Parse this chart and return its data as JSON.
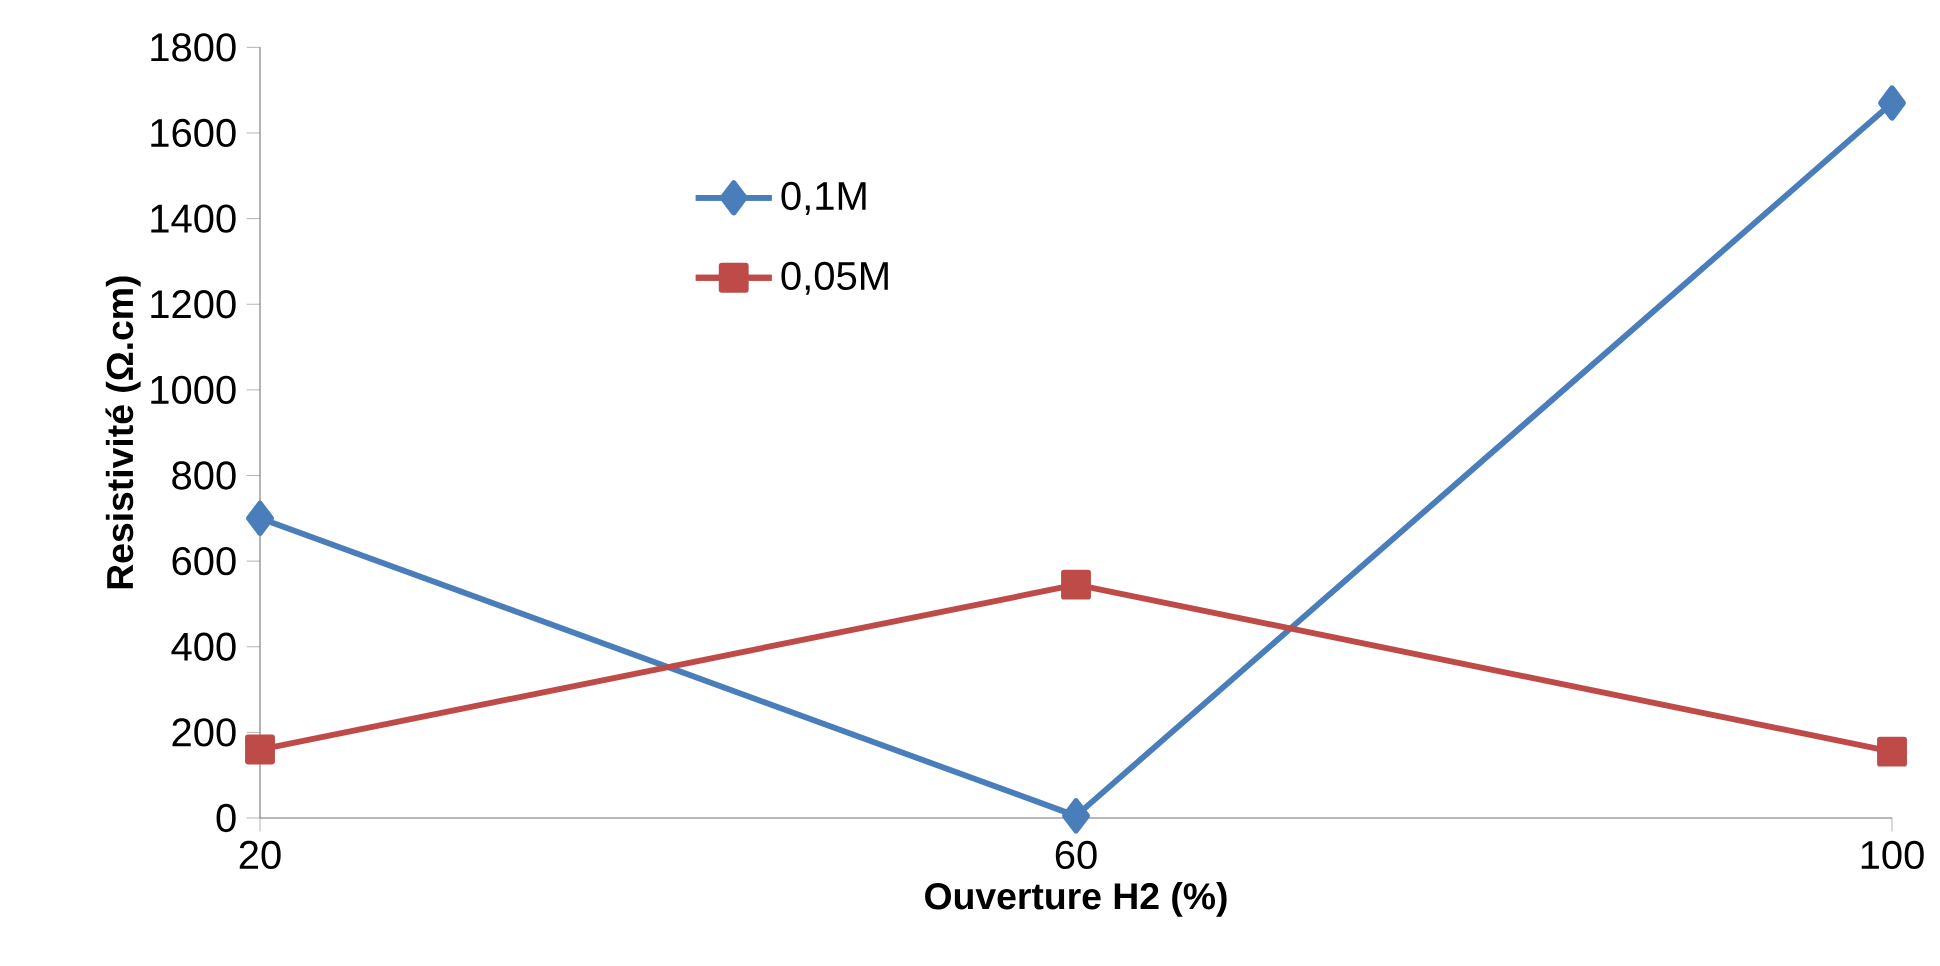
{
  "chart_data": {
    "type": "line",
    "xlabel": "Ouverture H2 (%)",
    "ylabel": "Resistivité (Ω.cm)",
    "x": [
      20,
      60,
      100
    ],
    "series": [
      {
        "name": "0,1M",
        "color": "#4a7ebb",
        "marker": "diamond",
        "values": [
          700,
          5,
          1670
        ]
      },
      {
        "name": "0,05M",
        "color": "#be4b48",
        "marker": "square",
        "values": [
          160,
          545,
          155
        ]
      }
    ],
    "xlim": [
      20,
      100
    ],
    "xticks": [
      20,
      60,
      100
    ],
    "ylim": [
      0,
      1800
    ],
    "yticks": [
      0,
      200,
      400,
      600,
      800,
      1000,
      1200,
      1400,
      1600,
      1800
    ],
    "grid": false,
    "legend": "top left",
    "line_style": "solid"
  }
}
